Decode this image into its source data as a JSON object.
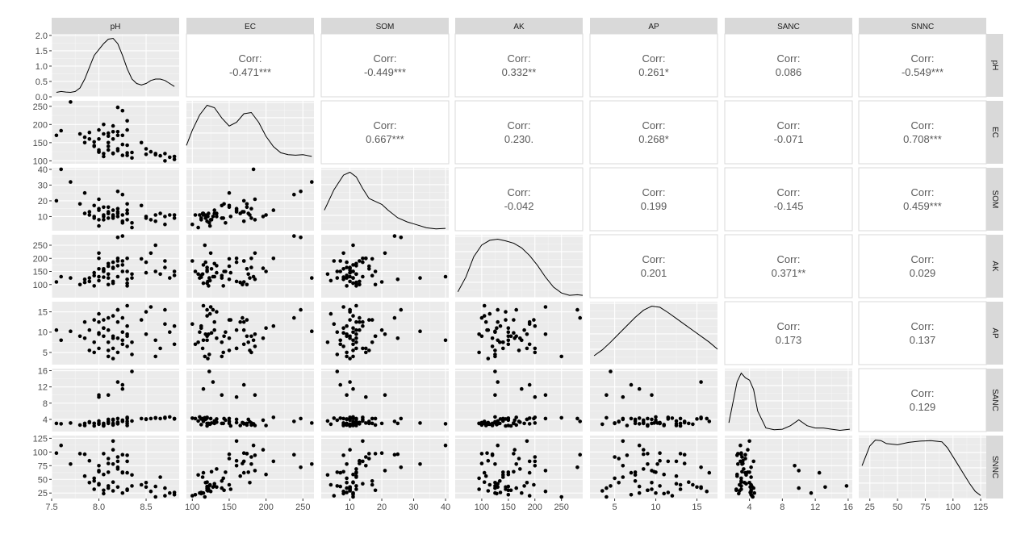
{
  "chart_data": {
    "type": "scatter-matrix",
    "variables": [
      "pH",
      "EC",
      "SOM",
      "AK",
      "AP",
      "SANC",
      "SNNC"
    ],
    "corr_label": "Corr:",
    "correlations": [
      {
        "row": "pH",
        "col": "EC",
        "value": "-0.471***"
      },
      {
        "row": "pH",
        "col": "SOM",
        "value": "-0.449***"
      },
      {
        "row": "pH",
        "col": "AK",
        "value": "0.332**"
      },
      {
        "row": "pH",
        "col": "AP",
        "value": "0.261*"
      },
      {
        "row": "pH",
        "col": "SANC",
        "value": "0.086"
      },
      {
        "row": "pH",
        "col": "SNNC",
        "value": "-0.549***"
      },
      {
        "row": "EC",
        "col": "SOM",
        "value": "0.667***"
      },
      {
        "row": "EC",
        "col": "AK",
        "value": "0.230."
      },
      {
        "row": "EC",
        "col": "AP",
        "value": "0.268*"
      },
      {
        "row": "EC",
        "col": "SANC",
        "value": "-0.071"
      },
      {
        "row": "EC",
        "col": "SNNC",
        "value": "0.708***"
      },
      {
        "row": "SOM",
        "col": "AK",
        "value": "-0.042"
      },
      {
        "row": "SOM",
        "col": "AP",
        "value": "0.199"
      },
      {
        "row": "SOM",
        "col": "SANC",
        "value": "-0.145"
      },
      {
        "row": "SOM",
        "col": "SNNC",
        "value": "0.459***"
      },
      {
        "row": "AK",
        "col": "AP",
        "value": "0.201"
      },
      {
        "row": "AK",
        "col": "SANC",
        "value": "0.371**"
      },
      {
        "row": "AK",
        "col": "SNNC",
        "value": "0.029"
      },
      {
        "row": "AP",
        "col": "SANC",
        "value": "0.173"
      },
      {
        "row": "AP",
        "col": "SNNC",
        "value": "0.137"
      },
      {
        "row": "SANC",
        "col": "SNNC",
        "value": "0.129"
      }
    ],
    "axes": {
      "pH": {
        "range": [
          7.5,
          8.85
        ],
        "ticks": [
          7.5,
          8.0,
          8.5
        ],
        "tick_labels": [
          "7.5",
          "8.0",
          "8.5"
        ]
      },
      "EC": {
        "range": [
          92,
          265
        ],
        "ticks": [
          100,
          150,
          200,
          250
        ],
        "tick_labels": [
          "100",
          "150",
          "200",
          "250"
        ]
      },
      "SOM": {
        "range": [
          1,
          41
        ],
        "ticks": [
          10,
          20,
          30,
          40
        ],
        "tick_labels": [
          "10",
          "20",
          "30",
          "40"
        ]
      },
      "AK": {
        "range": [
          50,
          290
        ],
        "ticks": [
          100,
          150,
          200,
          250
        ],
        "tick_labels": [
          "100",
          "150",
          "200",
          "250"
        ]
      },
      "AP": {
        "range": [
          2,
          17.5
        ],
        "ticks": [
          5,
          10,
          15
        ],
        "tick_labels": [
          "5",
          "10",
          "15"
        ]
      },
      "SANC": {
        "range": [
          1,
          16.5
        ],
        "ticks": [
          4,
          8,
          12,
          16
        ],
        "tick_labels": [
          "4",
          "8",
          "12",
          "16"
        ]
      },
      "SNNC": {
        "range": [
          15,
          130
        ],
        "ticks": [
          25,
          50,
          75,
          100,
          125
        ],
        "tick_labels": [
          "25",
          "50",
          "75",
          "100",
          "125"
        ]
      }
    },
    "density_axis": {
      "range": [
        0,
        2.05
      ],
      "ticks": [
        0.0,
        0.5,
        1.0,
        1.5,
        2.0
      ],
      "tick_labels": [
        "0.0",
        "0.5",
        "1.0",
        "1.5",
        "2.0"
      ]
    },
    "observations": [
      [
        7.55,
        170,
        20,
        110,
        10.5,
        3.0,
        98
      ],
      [
        7.6,
        183,
        40,
        130,
        8.0,
        2.9,
        112
      ],
      [
        7.7,
        262,
        32,
        125,
        10.2,
        3.1,
        78
      ],
      [
        7.8,
        174,
        18,
        100,
        9.0,
        2.6,
        97
      ],
      [
        7.85,
        165,
        12,
        108,
        12.5,
        2.5,
        56
      ],
      [
        7.85,
        150,
        25,
        120,
        8.5,
        3.0,
        96
      ],
      [
        7.9,
        160,
        13,
        112,
        10.5,
        3.2,
        84
      ],
      [
        7.9,
        178,
        11,
        125,
        5.5,
        3.4,
        44
      ],
      [
        7.95,
        140,
        17,
        134,
        7.5,
        3.0,
        47
      ],
      [
        7.95,
        152,
        10,
        145,
        13.0,
        2.4,
        32
      ],
      [
        8.0,
        130,
        14,
        130,
        12.5,
        3.6,
        42
      ],
      [
        8.0,
        160,
        15,
        200,
        6.0,
        9.5,
        75
      ],
      [
        8.0,
        185,
        21,
        220,
        9.5,
        10.0,
        66
      ],
      [
        8.05,
        120,
        10,
        155,
        9.0,
        2.4,
        30
      ],
      [
        8.05,
        174,
        16,
        160,
        13.0,
        3.0,
        97
      ],
      [
        8.05,
        200,
        11,
        150,
        11.0,
        2.5,
        59
      ],
      [
        8.1,
        140,
        9,
        125,
        4.0,
        10.0,
        34
      ],
      [
        8.1,
        176,
        12,
        140,
        7.5,
        4.0,
        63
      ],
      [
        8.1,
        150,
        16,
        170,
        5.5,
        3.5,
        88
      ],
      [
        8.1,
        130,
        12,
        180,
        10.5,
        3.0,
        38
      ],
      [
        8.15,
        196,
        10,
        162,
        8.5,
        3.8,
        104
      ],
      [
        8.15,
        160,
        14,
        185,
        6.0,
        4.0,
        120
      ],
      [
        8.15,
        120,
        11,
        105,
        14.0,
        3.0,
        45
      ],
      [
        8.15,
        180,
        9,
        165,
        9.0,
        2.6,
        78
      ],
      [
        8.2,
        170,
        13,
        190,
        12.5,
        2.9,
        83
      ],
      [
        8.2,
        128,
        10,
        130,
        15.5,
        13.2,
        36
      ],
      [
        8.2,
        180,
        15,
        200,
        5.0,
        3.1,
        91
      ],
      [
        8.2,
        247,
        26,
        280,
        15.5,
        4.2,
        72
      ],
      [
        8.25,
        145,
        6,
        150,
        10.0,
        3.8,
        63
      ],
      [
        8.25,
        115,
        11,
        175,
        8.0,
        11.5,
        25
      ],
      [
        8.25,
        170,
        7,
        190,
        7.0,
        12.5,
        62
      ],
      [
        8.25,
        238,
        24,
        285,
        13.5,
        3.5,
        95
      ],
      [
        8.3,
        185,
        8,
        120,
        6.5,
        2.5,
        94
      ],
      [
        8.3,
        143,
        18,
        150,
        9.0,
        4.2,
        30
      ],
      [
        8.3,
        115,
        12,
        105,
        16.5,
        3.5,
        62
      ],
      [
        8.3,
        210,
        14,
        200,
        11.5,
        4.5,
        83
      ],
      [
        8.35,
        123,
        6,
        125,
        4.5,
        15.8,
        38
      ],
      [
        8.45,
        150,
        17,
        198,
        13.0,
        4.2,
        40
      ],
      [
        8.5,
        118,
        9,
        185,
        9.5,
        4.0,
        44
      ],
      [
        8.5,
        133,
        10,
        145,
        15.0,
        4.1,
        36
      ],
      [
        8.55,
        125,
        8,
        220,
        16.2,
        4.2,
        28
      ],
      [
        8.6,
        120,
        7,
        150,
        8.0,
        4.3,
        37
      ],
      [
        8.6,
        117,
        11,
        250,
        4.0,
        4.4,
        18
      ],
      [
        8.65,
        114,
        12,
        140,
        6.0,
        4.2,
        54
      ],
      [
        8.7,
        120,
        10,
        165,
        15.5,
        4.5,
        34
      ],
      [
        8.7,
        100,
        5,
        190,
        12.0,
        4.3,
        20
      ],
      [
        8.75,
        110,
        11,
        125,
        10.0,
        4.6,
        25
      ],
      [
        8.8,
        112,
        9,
        135,
        11.5,
        4.1,
        26
      ],
      [
        8.8,
        104,
        11,
        150,
        7.0,
        4.2,
        22
      ],
      [
        8.3,
        122,
        12,
        95,
        9.5,
        3.0,
        32
      ],
      [
        8.0,
        124,
        4,
        115,
        14.5,
        2.8,
        40
      ],
      [
        8.1,
        168,
        13,
        100,
        13.5,
        3.2,
        79
      ],
      [
        8.35,
        108,
        3,
        140,
        7.5,
        3.6,
        58
      ],
      [
        8.05,
        112,
        8,
        128,
        11.0,
        2.7,
        24
      ],
      [
        8.2,
        133,
        12,
        172,
        8.5,
        3.3,
        69
      ],
      [
        7.95,
        142,
        9,
        95,
        5.0,
        3.0,
        52
      ],
      [
        8.15,
        121,
        10,
        112,
        3.5,
        2.8,
        29
      ],
      [
        8.0,
        126,
        8,
        160,
        9.8,
        3.1,
        64
      ]
    ],
    "densities": {
      "pH": {
        "kde_x": [
          7.55,
          7.6,
          7.65,
          7.7,
          7.75,
          7.8,
          7.85,
          7.9,
          7.95,
          8.0,
          8.05,
          8.1,
          8.15,
          8.2,
          8.25,
          8.3,
          8.35,
          8.4,
          8.45,
          8.5,
          8.55,
          8.6,
          8.65,
          8.7,
          8.75,
          8.8
        ],
        "kde_y": [
          0.15,
          0.18,
          0.16,
          0.15,
          0.18,
          0.3,
          0.6,
          1.0,
          1.4,
          1.6,
          1.8,
          1.95,
          1.98,
          1.8,
          1.4,
          0.95,
          0.6,
          0.45,
          0.4,
          0.45,
          0.55,
          0.6,
          0.6,
          0.55,
          0.45,
          0.35
        ]
      },
      "EC": {
        "kde_x": [
          92,
          100,
          110,
          120,
          130,
          140,
          150,
          160,
          170,
          180,
          190,
          200,
          210,
          220,
          230,
          240,
          250,
          262
        ],
        "kde_y": [
          0.3,
          0.55,
          0.8,
          0.96,
          0.92,
          0.75,
          0.62,
          0.68,
          0.82,
          0.84,
          0.68,
          0.45,
          0.28,
          0.18,
          0.15,
          0.14,
          0.15,
          0.12
        ]
      },
      "SOM": {
        "kde_x": [
          2,
          5,
          8,
          10,
          12,
          14,
          16,
          18,
          20,
          22,
          25,
          28,
          31,
          34,
          37,
          40
        ],
        "kde_y": [
          0.35,
          0.7,
          0.95,
          1.0,
          0.92,
          0.72,
          0.55,
          0.5,
          0.45,
          0.35,
          0.22,
          0.15,
          0.1,
          0.05,
          0.03,
          0.04
        ]
      },
      "AK": {
        "kde_x": [
          55,
          70,
          85,
          100,
          115,
          130,
          145,
          160,
          175,
          190,
          205,
          220,
          235,
          250,
          265,
          280,
          290
        ],
        "kde_y": [
          0.1,
          0.35,
          0.7,
          0.9,
          0.98,
          1.0,
          0.97,
          0.93,
          0.85,
          0.72,
          0.55,
          0.35,
          0.18,
          0.08,
          0.04,
          0.05,
          0.04
        ]
      },
      "AP": {
        "kde_x": [
          2.5,
          3.5,
          4.5,
          5.5,
          6.5,
          7.5,
          8.5,
          9.5,
          10.5,
          11.5,
          12.5,
          13.5,
          14.5,
          15.5,
          16.5,
          17.5
        ],
        "kde_y": [
          0.15,
          0.25,
          0.38,
          0.52,
          0.66,
          0.8,
          0.92,
          0.99,
          0.97,
          0.88,
          0.78,
          0.68,
          0.58,
          0.48,
          0.38,
          0.26
        ]
      },
      "SANC": {
        "kde_x": [
          1.5,
          2.0,
          2.5,
          3.0,
          3.5,
          4.0,
          4.5,
          5.0,
          6.0,
          7.0,
          8.0,
          9.0,
          10.0,
          11.0,
          12.0,
          13.0,
          14.0,
          15.0,
          16.2
        ],
        "kde_y": [
          0.15,
          0.5,
          0.85,
          1.0,
          0.92,
          0.88,
          0.72,
          0.35,
          0.06,
          0.03,
          0.04,
          0.1,
          0.2,
          0.1,
          0.06,
          0.06,
          0.04,
          0.02,
          0.04
        ]
      },
      "SNNC": {
        "kde_x": [
          18,
          25,
          30,
          35,
          40,
          50,
          60,
          70,
          80,
          90,
          95,
          100,
          105,
          110,
          115,
          120,
          125
        ],
        "kde_y": [
          0.55,
          0.88,
          0.98,
          0.97,
          0.92,
          0.9,
          0.94,
          0.96,
          0.97,
          0.95,
          0.85,
          0.7,
          0.55,
          0.4,
          0.25,
          0.12,
          0.05
        ]
      }
    }
  }
}
